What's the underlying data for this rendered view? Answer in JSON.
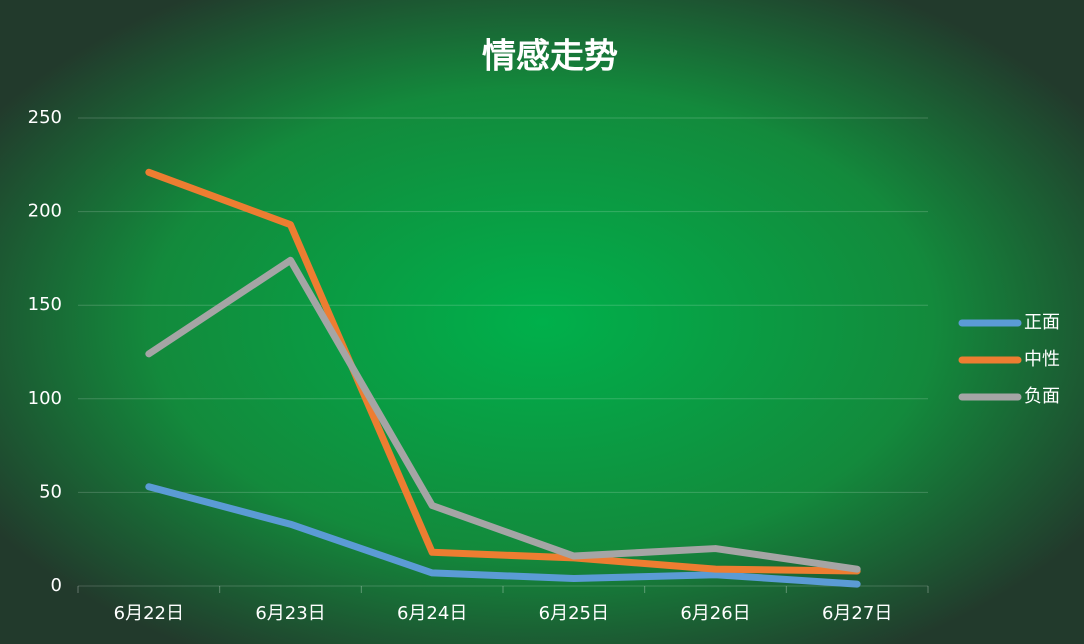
{
  "chart_data": {
    "type": "line",
    "title": "情感走势",
    "categories": [
      "6月22日",
      "6月23日",
      "6月24日",
      "6月25日",
      "6月26日",
      "6月27日"
    ],
    "series": [
      {
        "name": "正面",
        "color": "#5b9bd5",
        "values": [
          53,
          33,
          7,
          4,
          6,
          1
        ]
      },
      {
        "name": "中性",
        "color": "#ed7d31",
        "values": [
          221,
          193,
          18,
          15,
          9,
          8
        ]
      },
      {
        "name": "负面",
        "color": "#a5a5a5",
        "values": [
          124,
          174,
          43,
          16,
          20,
          9
        ]
      }
    ],
    "ylim": [
      0,
      250
    ],
    "yticks": [
      0,
      50,
      100,
      150,
      200,
      250
    ],
    "grid": true,
    "legend": "right"
  }
}
